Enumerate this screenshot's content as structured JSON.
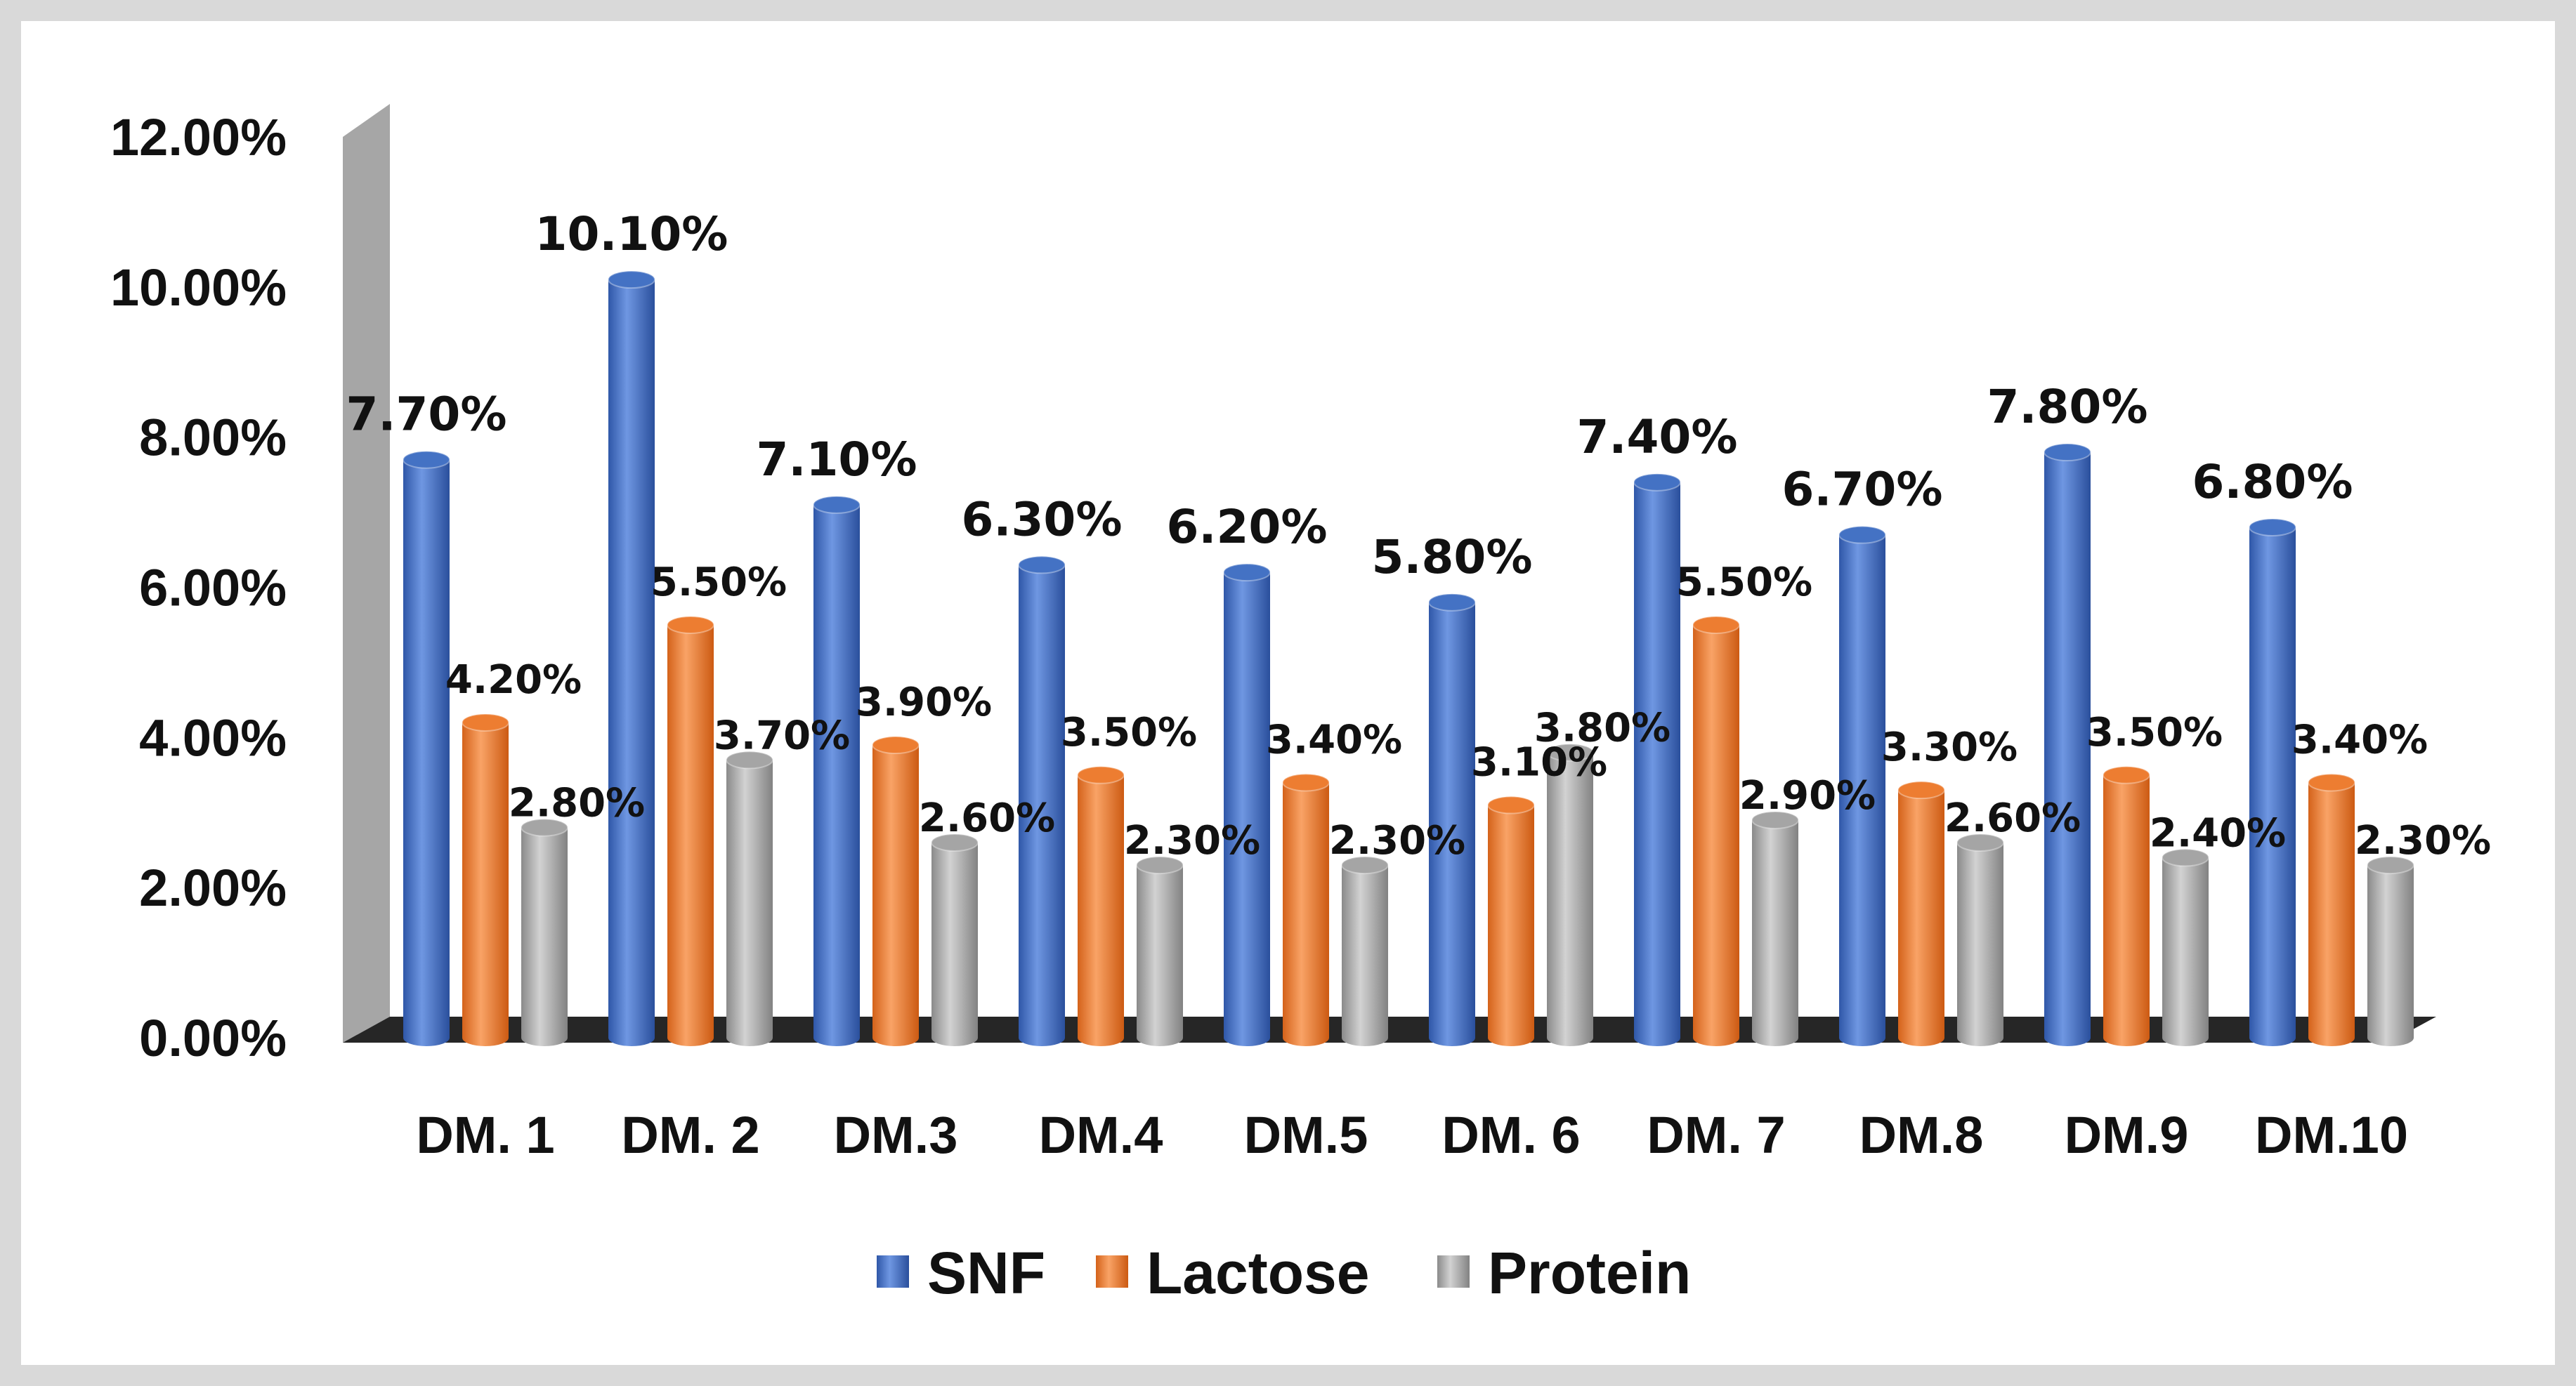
{
  "chart_data": {
    "type": "bar",
    "title": "",
    "xlabel": "",
    "ylabel": "",
    "ylim": [
      0,
      12
    ],
    "y_ticks": [
      "0.00%",
      "2.00%",
      "4.00%",
      "6.00%",
      "8.00%",
      "10.00%",
      "12.00%"
    ],
    "categories": [
      "DM. 1",
      "DM. 2",
      "DM.3",
      "DM.4",
      "DM.5",
      "DM. 6",
      "DM. 7",
      "DM.8",
      "DM.9",
      "DM.10"
    ],
    "series": [
      {
        "name": "SNF",
        "color": "#4472C4",
        "values": [
          7.7,
          10.1,
          7.1,
          6.3,
          6.2,
          5.8,
          7.4,
          6.7,
          7.8,
          6.8
        ],
        "labels": [
          "7.70%",
          "10.10%",
          "7.10%",
          "6.30%",
          "6.20%",
          "5.80%",
          "7.40%",
          "6.70%",
          "7.80%",
          "6.80%"
        ]
      },
      {
        "name": "Lactose",
        "color": "#ED7D31",
        "values": [
          4.2,
          5.5,
          3.9,
          3.5,
          3.4,
          3.1,
          5.5,
          3.3,
          3.5,
          3.4
        ],
        "labels": [
          "4.20%",
          "5.50%",
          "3.90%",
          "3.50%",
          "3.40%",
          "3.10%",
          "5.50%",
          "3.30%",
          "3.50%",
          "3.40%"
        ]
      },
      {
        "name": "Protein",
        "color": "#A5A5A5",
        "values": [
          2.8,
          3.7,
          2.6,
          2.3,
          2.3,
          3.8,
          2.9,
          2.6,
          2.4,
          2.3
        ],
        "labels": [
          "2.80%",
          "3.70%",
          "2.60%",
          "2.30%",
          "2.30%",
          "3.80%",
          "2.90%",
          "2.60%",
          "2.40%",
          "2.30%"
        ]
      }
    ],
    "legend": {
      "position": "bottom"
    },
    "grid": false
  }
}
